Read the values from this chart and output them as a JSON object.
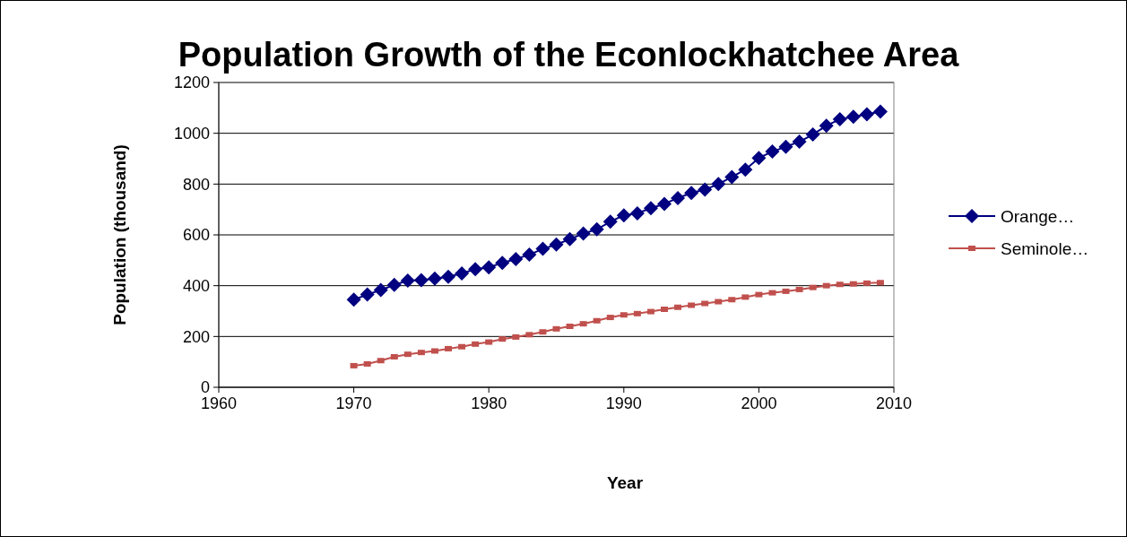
{
  "chart_data": {
    "type": "line",
    "title": "Population Growth of the Econlockhatchee Area",
    "xlabel": "Year",
    "ylabel": "Population (thousand)",
    "x": [
      1970,
      1971,
      1972,
      1973,
      1974,
      1975,
      1976,
      1977,
      1978,
      1979,
      1980,
      1981,
      1982,
      1983,
      1984,
      1985,
      1986,
      1987,
      1988,
      1989,
      1990,
      1991,
      1992,
      1993,
      1994,
      1995,
      1996,
      1997,
      1998,
      1999,
      2000,
      2001,
      2002,
      2003,
      2004,
      2005,
      2006,
      2007,
      2008,
      2009
    ],
    "series": [
      {
        "name": "Orange…",
        "color": "#000080",
        "marker": "diamond",
        "values": [
          345,
          365,
          383,
          403,
          420,
          422,
          428,
          435,
          448,
          465,
          472,
          490,
          505,
          522,
          545,
          562,
          583,
          605,
          622,
          652,
          677,
          685,
          705,
          722,
          745,
          765,
          778,
          800,
          828,
          857,
          903,
          928,
          947,
          967,
          995,
          1030,
          1055,
          1065,
          1075,
          1085
        ]
      },
      {
        "name": "Seminole…",
        "color": "#c0504d",
        "marker": "square",
        "values": [
          85,
          92,
          105,
          120,
          130,
          137,
          143,
          152,
          160,
          170,
          178,
          190,
          198,
          207,
          218,
          230,
          240,
          250,
          262,
          275,
          285,
          290,
          298,
          307,
          315,
          323,
          330,
          337,
          345,
          355,
          365,
          372,
          378,
          385,
          393,
          400,
          405,
          407,
          410,
          412
        ]
      }
    ],
    "xlim": [
      1960,
      2010
    ],
    "xticks": [
      1960,
      1970,
      1980,
      1990,
      2000,
      2010
    ],
    "ylim": [
      0,
      1200
    ],
    "yticks": [
      0,
      200,
      400,
      600,
      800,
      1000,
      1200
    ],
    "grid": "y",
    "legend": "right"
  }
}
